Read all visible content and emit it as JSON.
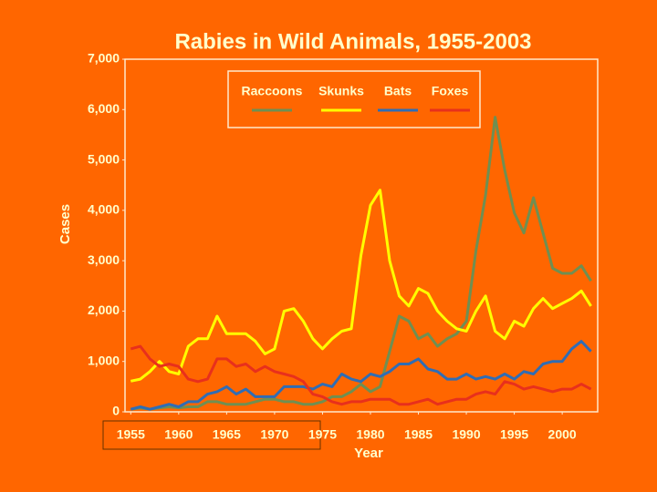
{
  "chart_data": {
    "type": "line",
    "title": "Rabies in Wild Animals, 1955-2003",
    "xlabel": "Year",
    "ylabel": "Cases",
    "x": [
      1955,
      1956,
      1957,
      1958,
      1959,
      1960,
      1961,
      1962,
      1963,
      1964,
      1965,
      1966,
      1967,
      1968,
      1969,
      1970,
      1971,
      1972,
      1973,
      1974,
      1975,
      1976,
      1977,
      1978,
      1979,
      1980,
      1981,
      1982,
      1983,
      1984,
      1985,
      1986,
      1987,
      1988,
      1989,
      1990,
      1991,
      1992,
      1993,
      1994,
      1995,
      1996,
      1997,
      1998,
      1999,
      2000,
      2001,
      2002,
      2003
    ],
    "series": [
      {
        "name": "Raccoons",
        "color": "#6f8f52",
        "values": [
          50,
          80,
          50,
          80,
          100,
          80,
          100,
          100,
          200,
          200,
          150,
          150,
          150,
          200,
          250,
          250,
          200,
          200,
          150,
          150,
          200,
          300,
          300,
          400,
          550,
          400,
          500,
          1200,
          1900,
          1800,
          1450,
          1550,
          1300,
          1450,
          1550,
          1800,
          3200,
          4300,
          5850,
          4800,
          3950,
          3550,
          4250,
          3550,
          2850,
          2750,
          2750,
          2900,
          2600
        ]
      },
      {
        "name": "Skunks",
        "color": "#ffff00",
        "values": [
          610,
          650,
          800,
          1000,
          800,
          750,
          1300,
          1450,
          1450,
          1900,
          1550,
          1550,
          1550,
          1400,
          1150,
          1250,
          2000,
          2050,
          1800,
          1450,
          1250,
          1450,
          1600,
          1650,
          3100,
          4100,
          4400,
          3000,
          2300,
          2100,
          2450,
          2350,
          2000,
          1800,
          1650,
          1600,
          2000,
          2300,
          1600,
          1450,
          1800,
          1700,
          2050,
          2250,
          2050,
          2150,
          2250,
          2400,
          2100
        ]
      },
      {
        "name": "Bats",
        "color": "#2f6db5",
        "values": [
          50,
          100,
          50,
          100,
          150,
          100,
          200,
          200,
          350,
          400,
          500,
          350,
          450,
          300,
          300,
          300,
          500,
          500,
          500,
          450,
          550,
          500,
          750,
          650,
          600,
          750,
          700,
          800,
          950,
          950,
          1050,
          850,
          800,
          650,
          650,
          750,
          650,
          700,
          650,
          750,
          650,
          800,
          750,
          950,
          1000,
          1000,
          1250,
          1400,
          1200
        ]
      },
      {
        "name": "Foxes",
        "color": "#e8301c",
        "values": [
          1250,
          1300,
          1050,
          900,
          950,
          900,
          650,
          600,
          650,
          1050,
          1050,
          900,
          950,
          800,
          900,
          800,
          750,
          700,
          600,
          350,
          300,
          200,
          150,
          200,
          200,
          250,
          250,
          250,
          150,
          150,
          200,
          250,
          150,
          200,
          250,
          250,
          350,
          400,
          350,
          600,
          550,
          450,
          500,
          450,
          400,
          450,
          450,
          550,
          450
        ]
      }
    ],
    "xlim": [
      1954.4,
      2003.7
    ],
    "xticks": [
      1955,
      1960,
      1965,
      1970,
      1975,
      1980,
      1985,
      1990,
      1995,
      2000
    ],
    "ylim": [
      0,
      7000
    ],
    "yticks": [
      0,
      {
        "value": 1000,
        "label": "1,000"
      },
      {
        "value": 2000,
        "label": "2,000"
      },
      {
        "value": 3000,
        "label": "3,000"
      },
      {
        "value": 4000,
        "label": "4,000"
      },
      {
        "value": 5000,
        "label": "5,000"
      },
      {
        "value": 6000,
        "label": "6,000"
      },
      {
        "value": 7000,
        "label": "7,000"
      }
    ],
    "grid": false,
    "legend": "top"
  }
}
